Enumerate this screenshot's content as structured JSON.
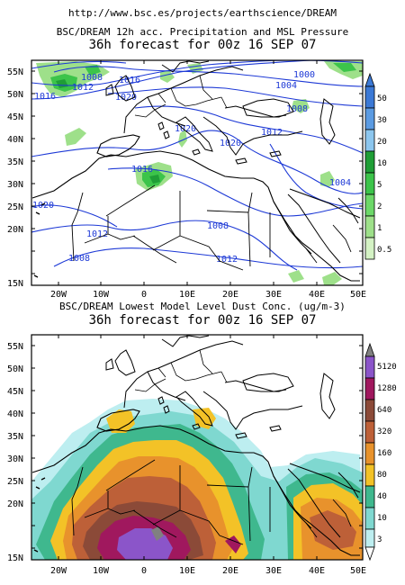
{
  "source_url": "http://www.bsc.es/projects/earthscience/DREAM",
  "panel_precip": {
    "title": "BSC/DREAM 12h acc. Precipitation and MSL Pressure",
    "subtitle": "36h forecast for 00z 16 SEP 07",
    "lat_labels": [
      "55N",
      "50N",
      "45N",
      "40N",
      "35N",
      "30N",
      "25N",
      "20N",
      "15N"
    ],
    "lon_labels": [
      "20W",
      "10W",
      "0",
      "10E",
      "20E",
      "30E",
      "40E",
      "50E"
    ],
    "isobar_labels": [
      "1008",
      "1012",
      "1016",
      "1016",
      "1020",
      "1020",
      "1020",
      "1016",
      "1012",
      "1008",
      "1012",
      "1008",
      "1000",
      "1004",
      "1008",
      "1012",
      "1004",
      "1020"
    ],
    "colorbar_labels": [
      "50",
      "30",
      "20",
      "10",
      "5",
      "2",
      "1",
      "0.5"
    ],
    "colors": {
      "isobar": "#1d39d6",
      "dark_green": "#1f9e36",
      "green": "#3cc44a",
      "light_green": "#9ee08a",
      "pale_green": "#d4f2c4",
      "light_blue": "#8cc6ee",
      "blue": "#3b79d6"
    }
  },
  "panel_dust": {
    "title": "BSC/DREAM Lowest Model Level Dust Conc. (ug/m-3)",
    "subtitle": "36h forecast for 00z 16 SEP 07",
    "lat_labels": [
      "55N",
      "50N",
      "45N",
      "40N",
      "35N",
      "30N",
      "25N",
      "20N",
      "15N"
    ],
    "lon_labels": [
      "20W",
      "10W",
      "0",
      "10E",
      "20E",
      "30E",
      "40E",
      "50E"
    ],
    "colorbar_labels": [
      "5120",
      "1280",
      "640",
      "320",
      "160",
      "80",
      "40",
      "10",
      "3"
    ],
    "colors": {
      "level_3": "#bdeef0",
      "level_10": "#7fd8d0",
      "level_40": "#3fb88e",
      "level_80": "#f3c227",
      "level_160": "#e8922c",
      "level_320": "#bd6038",
      "level_640": "#8b4a38",
      "level_1280": "#a0185e",
      "level_5120": "#8b55c9",
      "top": "#808080"
    }
  }
}
